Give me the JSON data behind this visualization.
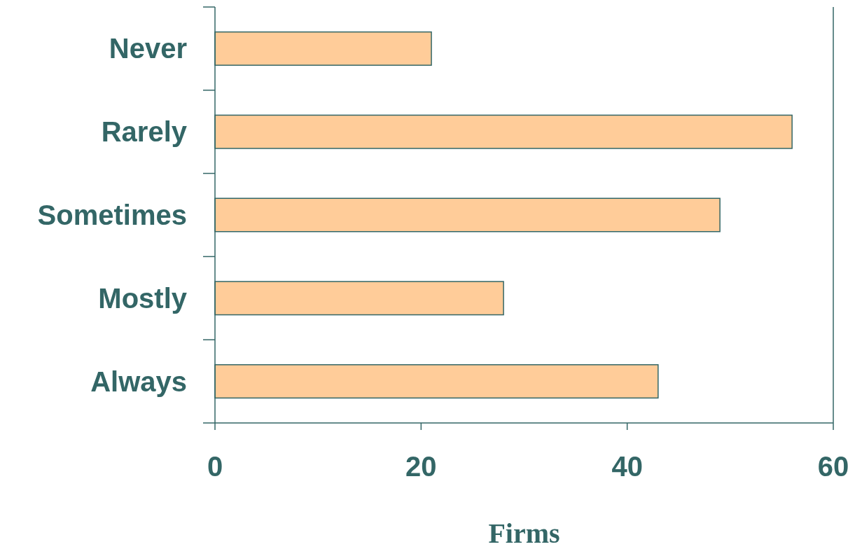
{
  "chart_data": {
    "type": "bar",
    "orientation": "horizontal",
    "categories": [
      "Never",
      "Rarely",
      "Sometimes",
      "Mostly",
      "Always"
    ],
    "values": [
      21,
      56,
      49,
      28,
      43
    ],
    "color": "#ffcc99",
    "xlabel": "Firms",
    "xlim": [
      0,
      60
    ],
    "xticks": [
      0,
      20,
      40,
      60
    ],
    "grid": false
  }
}
